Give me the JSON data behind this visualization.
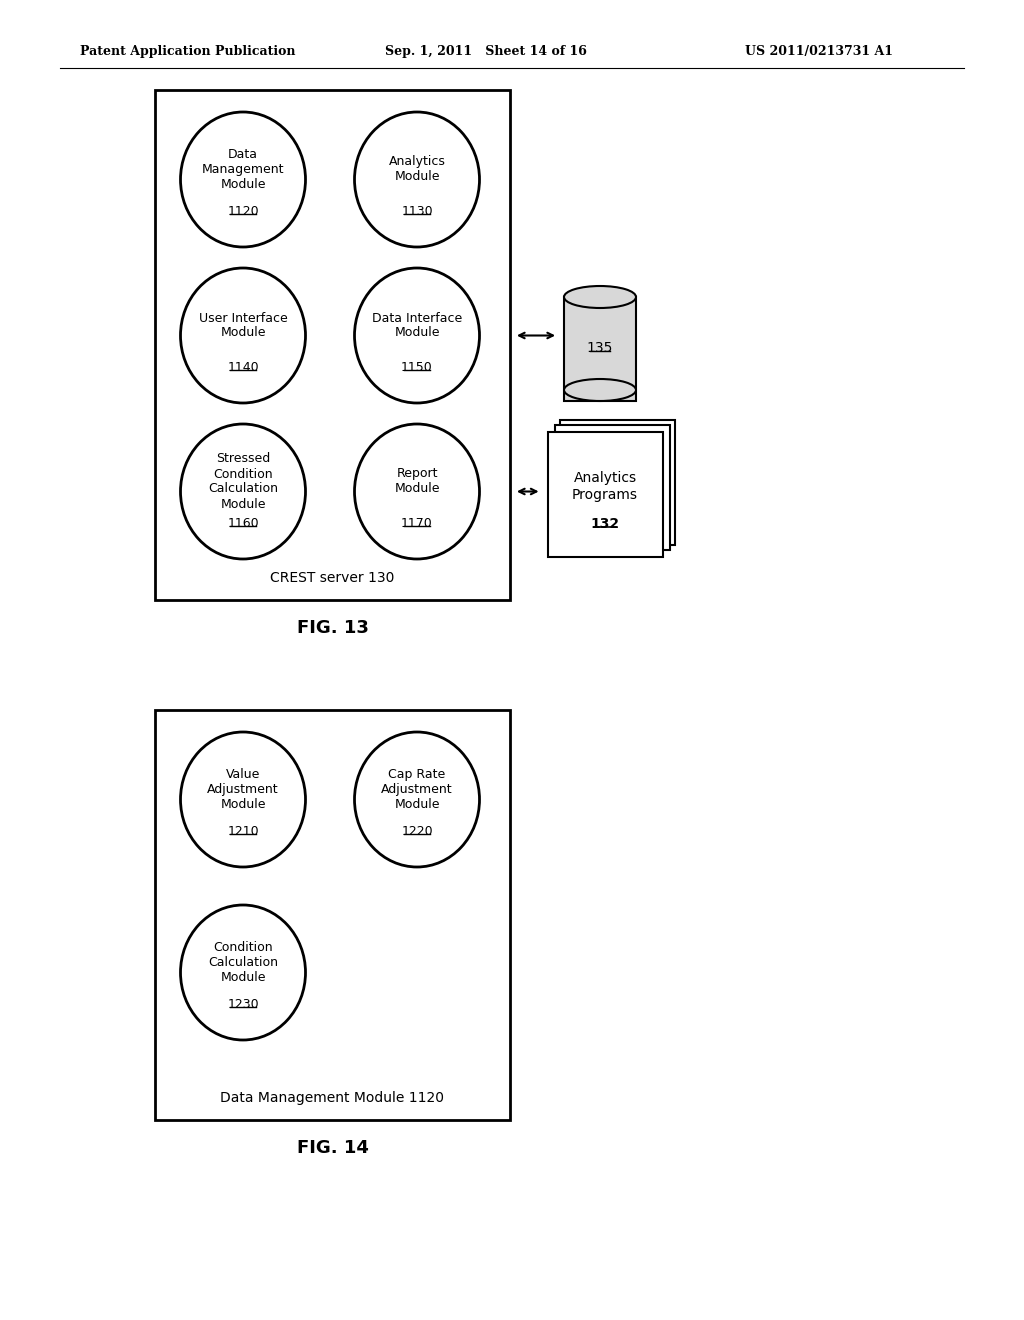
{
  "header_left": "Patent Application Publication",
  "header_mid": "Sep. 1, 2011   Sheet 14 of 16",
  "header_right": "US 2011/0213731 A1",
  "fig13": {
    "title": "FIG. 13",
    "box_label": "CREST server 130",
    "modules": [
      {
        "row": 0,
        "col": 0
      },
      {
        "row": 0,
        "col": 1
      },
      {
        "row": 1,
        "col": 0
      },
      {
        "row": 1,
        "col": 1
      },
      {
        "row": 2,
        "col": 0
      },
      {
        "row": 2,
        "col": 1
      }
    ],
    "module_texts": [
      [
        "Data\nManagement\nModule",
        "1120"
      ],
      [
        "Analytics\nModule",
        "1130"
      ],
      [
        "User Interface\nModule",
        "1140"
      ],
      [
        "Data Interface\nModule",
        "1150"
      ],
      [
        "Stressed\nCondition\nCalculation\nModule",
        "1160"
      ],
      [
        "Report\nModule",
        "1170"
      ]
    ],
    "db_label": "135",
    "analytics_label": "Analytics\nPrograms",
    "analytics_number": "132"
  },
  "fig14": {
    "title": "FIG. 14",
    "box_label": "Data Management Module 1120",
    "modules": [
      {
        "row": 0,
        "col": 0
      },
      {
        "row": 0,
        "col": 1
      },
      {
        "row": 1,
        "col": 0
      }
    ],
    "module_texts": [
      [
        "Value\nAdjustment\nModule",
        "1210"
      ],
      [
        "Cap Rate\nAdjustment\nModule",
        "1220"
      ],
      [
        "Condition\nCalculation\nModule",
        "1230"
      ]
    ]
  },
  "bg_color": "#ffffff",
  "box_color": "#000000",
  "text_color": "#000000"
}
